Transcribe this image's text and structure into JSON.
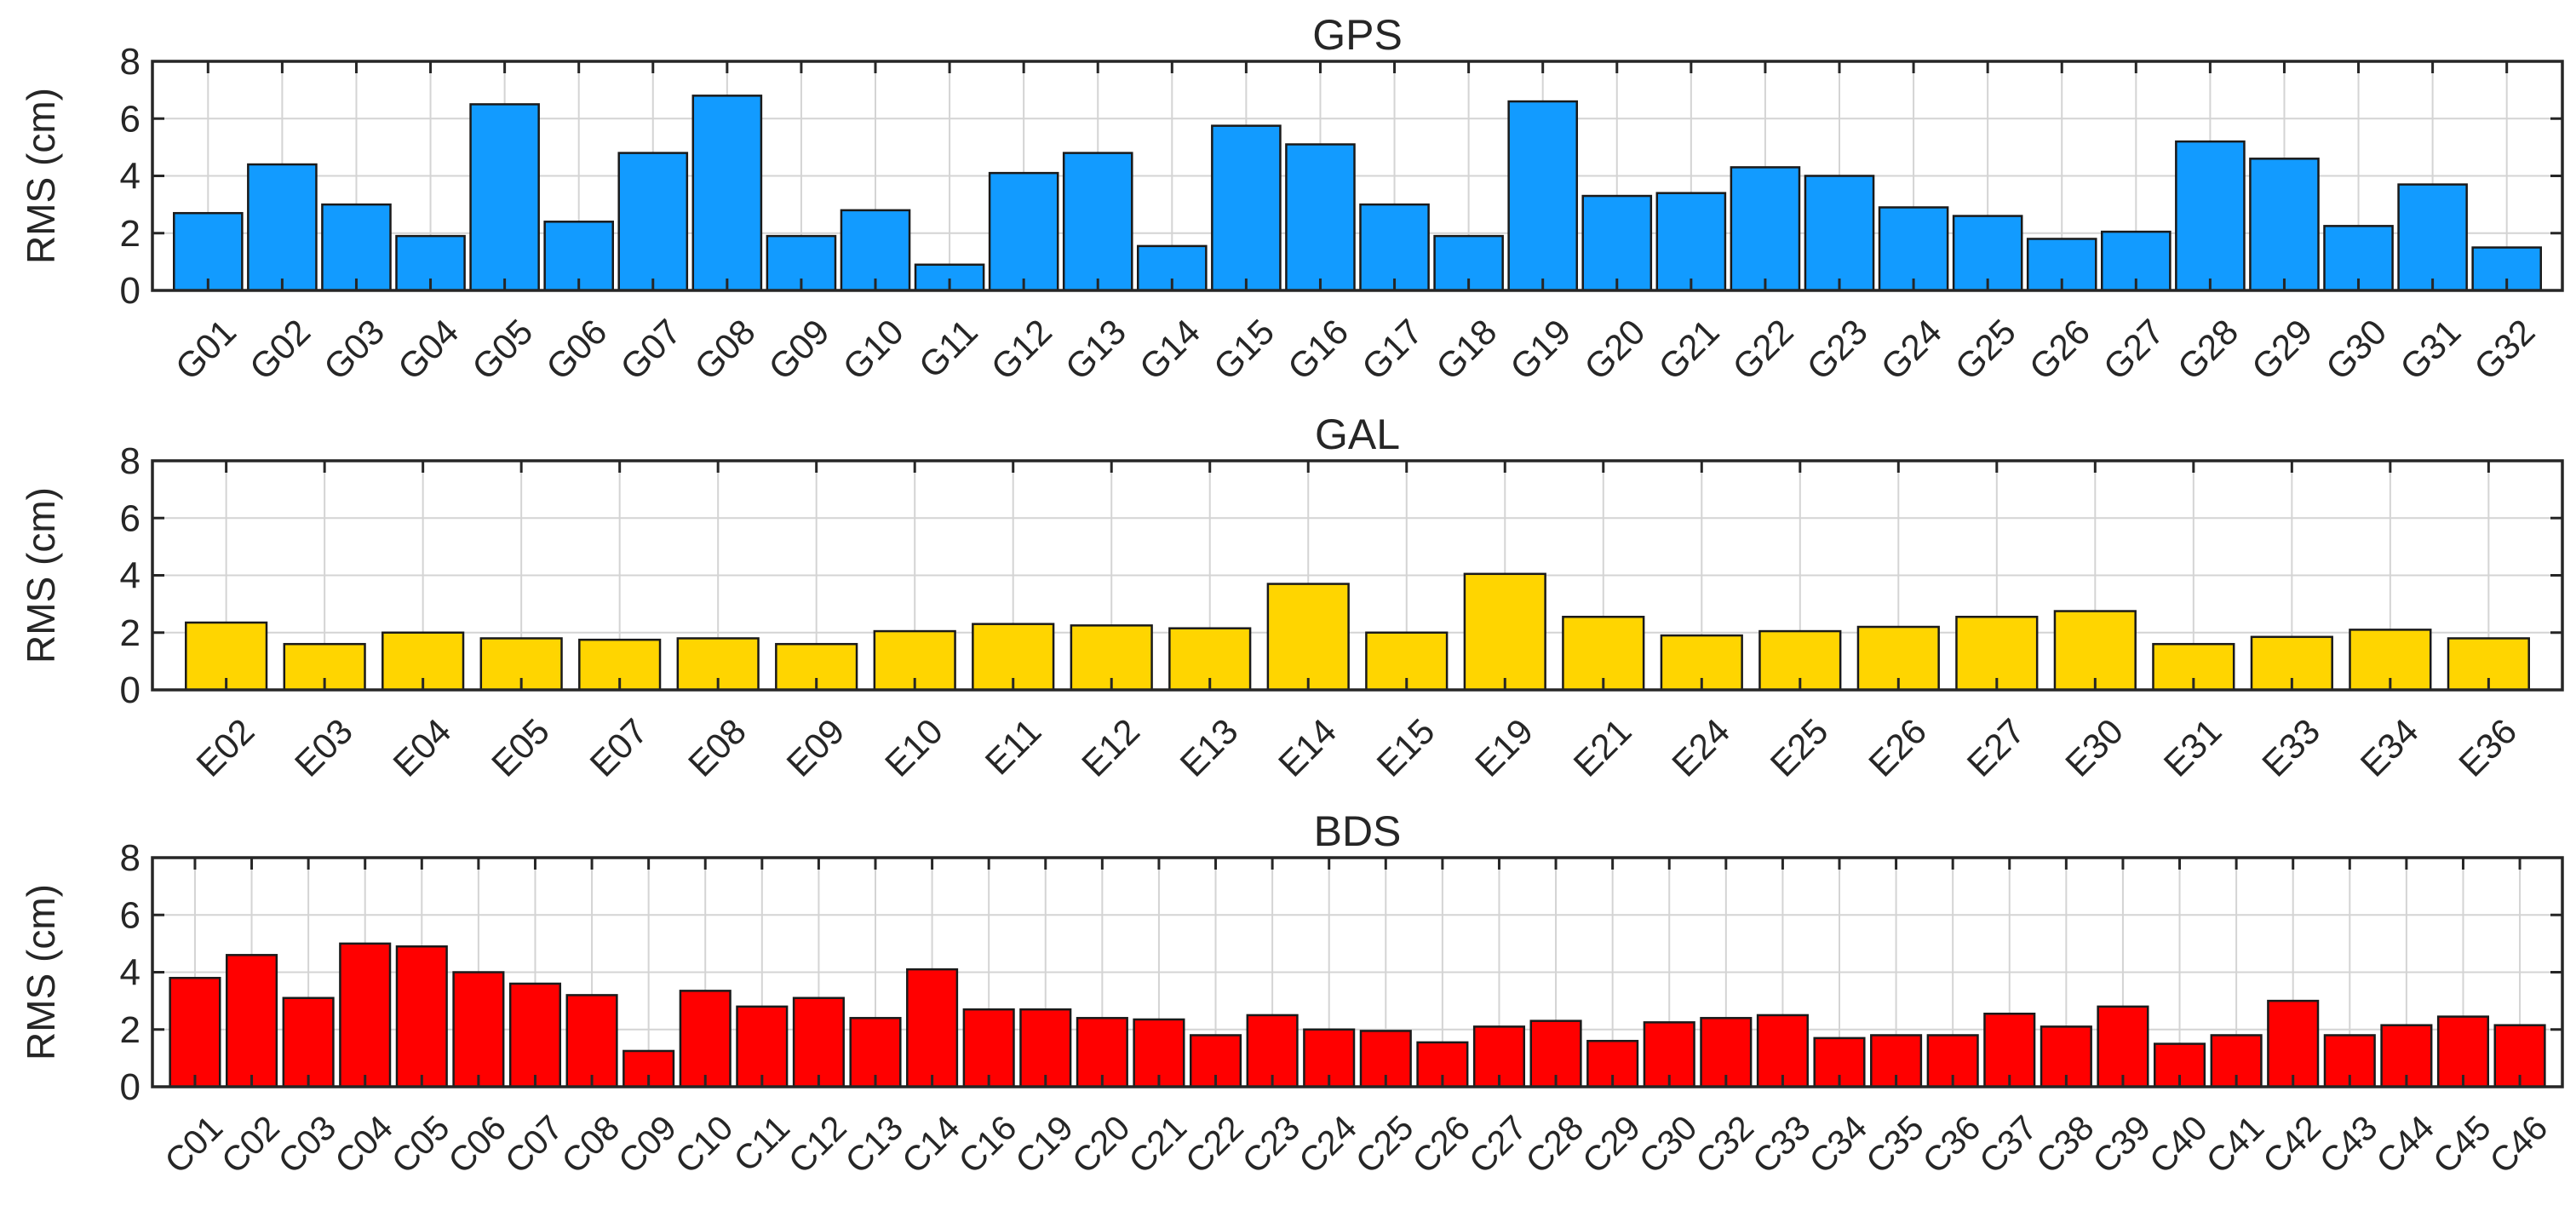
{
  "chart_data": [
    {
      "type": "bar",
      "title": "GPS",
      "xlabel": "",
      "ylabel": "RMS (cm)",
      "ylim": [
        0,
        8
      ],
      "yticks": [
        0,
        2,
        4,
        6,
        8
      ],
      "grid": true,
      "color": "#129BFF",
      "categories": [
        "G01",
        "G02",
        "G03",
        "G04",
        "G05",
        "G06",
        "G07",
        "G08",
        "G09",
        "G10",
        "G11",
        "G12",
        "G13",
        "G14",
        "G15",
        "G16",
        "G17",
        "G18",
        "G19",
        "G20",
        "G21",
        "G22",
        "G23",
        "G24",
        "G25",
        "G26",
        "G27",
        "G28",
        "G29",
        "G30",
        "G31",
        "G32"
      ],
      "values": [
        2.7,
        4.4,
        3.0,
        1.9,
        6.5,
        2.4,
        4.8,
        6.8,
        1.9,
        2.8,
        0.9,
        4.1,
        4.8,
        1.55,
        5.75,
        5.1,
        3.0,
        1.9,
        6.6,
        3.3,
        3.4,
        4.3,
        4.0,
        2.9,
        2.6,
        1.8,
        2.05,
        5.2,
        4.6,
        2.25,
        3.7,
        1.5
      ]
    },
    {
      "type": "bar",
      "title": "GAL",
      "xlabel": "",
      "ylabel": "RMS (cm)",
      "ylim": [
        0,
        8
      ],
      "yticks": [
        0,
        2,
        4,
        6,
        8
      ],
      "grid": true,
      "color": "#FFD500",
      "categories": [
        "E02",
        "E03",
        "E04",
        "E05",
        "E07",
        "E08",
        "E09",
        "E10",
        "E11",
        "E12",
        "E13",
        "E14",
        "E15",
        "E19",
        "E21",
        "E24",
        "E25",
        "E26",
        "E27",
        "E30",
        "E31",
        "E33",
        "E34",
        "E36"
      ],
      "values": [
        2.35,
        1.6,
        2.0,
        1.8,
        1.75,
        1.8,
        1.6,
        2.05,
        2.3,
        2.25,
        2.15,
        3.7,
        2.0,
        4.05,
        2.55,
        1.9,
        2.05,
        2.2,
        2.55,
        2.75,
        1.6,
        1.85,
        2.1,
        1.8
      ]
    },
    {
      "type": "bar",
      "title": "BDS",
      "xlabel": "",
      "ylabel": "RMS (cm)",
      "ylim": [
        0,
        8
      ],
      "yticks": [
        0,
        2,
        4,
        6,
        8
      ],
      "grid": true,
      "color": "#FF0000",
      "categories": [
        "C01",
        "C02",
        "C03",
        "C04",
        "C05",
        "C06",
        "C07",
        "C08",
        "C09",
        "C10",
        "C11",
        "C12",
        "C13",
        "C14",
        "C16",
        "C19",
        "C20",
        "C21",
        "C22",
        "C23",
        "C24",
        "C25",
        "C26",
        "C27",
        "C28",
        "C29",
        "C30",
        "C32",
        "C33",
        "C34",
        "C35",
        "C36",
        "C37",
        "C38",
        "C39",
        "C40",
        "C41",
        "C42",
        "C43",
        "C44",
        "C45",
        "C46"
      ],
      "values": [
        3.8,
        4.6,
        3.1,
        5.0,
        4.9,
        4.0,
        3.6,
        3.2,
        1.25,
        3.35,
        2.8,
        3.1,
        2.4,
        4.1,
        2.7,
        2.7,
        2.4,
        2.35,
        1.8,
        2.5,
        2.0,
        1.95,
        1.55,
        2.1,
        2.3,
        1.6,
        2.25,
        2.4,
        2.5,
        1.7,
        1.8,
        1.8,
        2.55,
        2.1,
        2.8,
        1.5,
        1.8,
        3.0,
        1.8,
        2.15,
        2.45,
        2.15
      ]
    }
  ]
}
